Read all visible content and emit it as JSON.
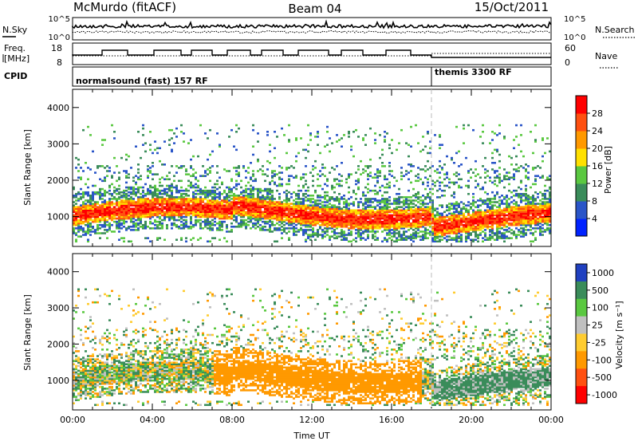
{
  "header": {
    "station": "McMurdo (fitACF)",
    "beam": "Beam 04",
    "date": "15/Oct/2011"
  },
  "top_panels": {
    "nsky_label": "N.Sky",
    "nsearch_label": "N.Search",
    "freq_label_line1": "Freq.",
    "freq_label_line2": "[MHz]",
    "nave_label": "Nave",
    "cpid_label": "CPID",
    "noise_left_ticks": [
      "10^5",
      "10^0"
    ],
    "noise_right_ticks": [
      "10^5",
      "10^0"
    ],
    "freq_left_ticks": [
      "18",
      "8"
    ],
    "freq_right_ticks": [
      "60",
      "0"
    ],
    "cpid_modes": [
      {
        "label": "normalsound (fast) 157 RF",
        "start_hour": 0
      },
      {
        "label": "themis 3300 RF",
        "start_hour": 18
      }
    ]
  },
  "chart_data": [
    {
      "type": "heatmap",
      "name": "power",
      "ylabel": "Slant Range [km]",
      "xlabel": "",
      "ylim": [
        180,
        4500
      ],
      "yticks": [
        "1000",
        "2000",
        "3000",
        "4000"
      ],
      "colorbar": {
        "label": "Power [dB]",
        "ticks": [
          "4",
          "8",
          "12",
          "16",
          "20",
          "24",
          "28"
        ],
        "colors": [
          "#0022ff",
          "#2a55c8",
          "#3a8c5a",
          "#5ac840",
          "#ffe000",
          "#ff9900",
          "#ff5010",
          "#ff0000"
        ]
      }
    },
    {
      "type": "heatmap",
      "name": "velocity",
      "ylabel": "Slant Range [km]",
      "xlabel": "Time UT",
      "ylim": [
        180,
        4500
      ],
      "yticks": [
        "1000",
        "2000",
        "3000",
        "4000"
      ],
      "xticks": [
        "00:00",
        "04:00",
        "08:00",
        "12:00",
        "16:00",
        "20:00",
        "00:00"
      ],
      "colorbar": {
        "label": "Velocity [m s⁻¹]",
        "ticks": [
          "1000",
          "500",
          "100",
          "25",
          "-25",
          "-100",
          "-500",
          "-1000"
        ],
        "colors": [
          "#2040c0",
          "#3a8c5a",
          "#5ac840",
          "#c0c0c0",
          "#ffcc30",
          "#ff9900",
          "#ff5010",
          "#ff0000"
        ]
      }
    }
  ]
}
